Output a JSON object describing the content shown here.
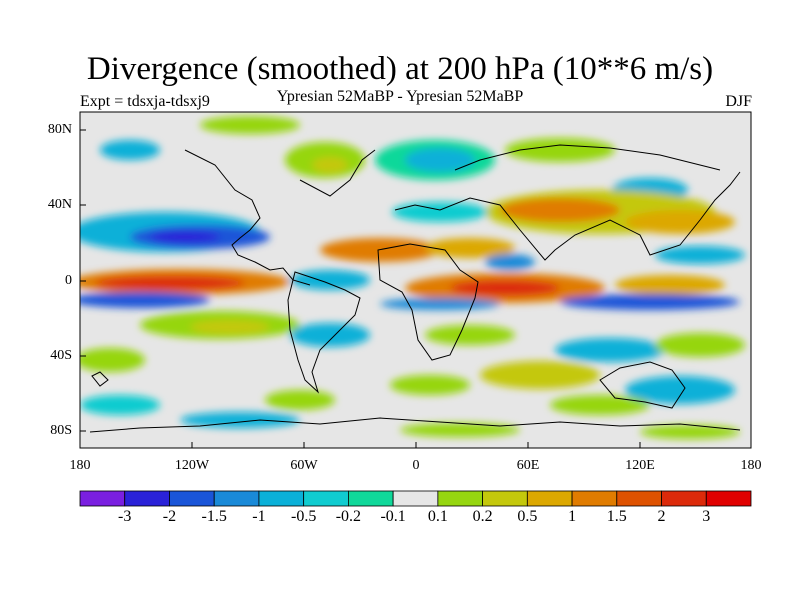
{
  "title": "Divergence (smoothed) at 200 hPa (10**6 m/s)",
  "subtitle": "Ypresian  52MaBP - Ypresian  52MaBP",
  "experiment": "Expt = tdsxja-tdsxj9",
  "season": "DJF",
  "lat_labels": [
    "80N",
    "40N",
    "0",
    "40S",
    "80S"
  ],
  "lon_labels": [
    "180",
    "120W",
    "60W",
    "0",
    "60E",
    "120E",
    "180"
  ],
  "colorbar": {
    "labels": [
      "-3",
      "-2",
      "-1.5",
      "-1",
      "-0.5",
      "-0.2",
      "-0.1",
      "0.1",
      "0.2",
      "0.5",
      "1",
      "1.5",
      "2",
      "3"
    ],
    "colors": [
      "#7a1fe0",
      "#2a22d8",
      "#1a55d8",
      "#1a8ad8",
      "#0ab0d8",
      "#10ccd0",
      "#10d89a",
      "#e6e6e6",
      "#96d610",
      "#c4c80c",
      "#dca800",
      "#e07c00",
      "#de5200",
      "#dc2a0a",
      "#e00000"
    ]
  }
}
